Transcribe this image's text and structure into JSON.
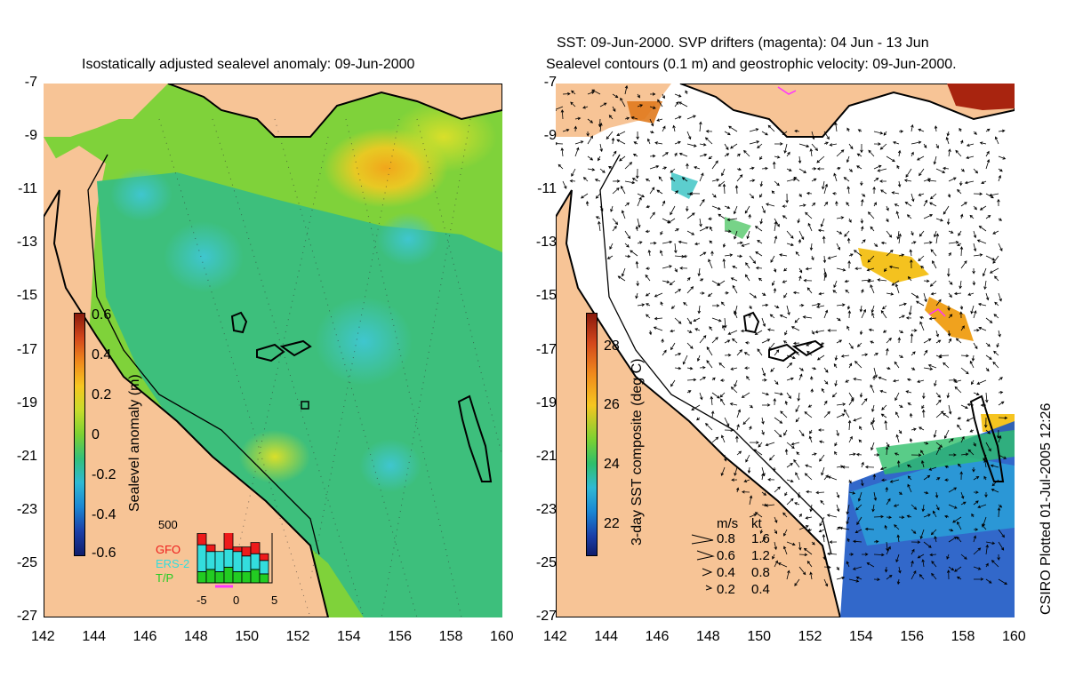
{
  "left": {
    "title": "Isostatically adjusted sealevel anomaly: 09-Jun-2000",
    "colorbar_label": "Sealevel anomaly (m)",
    "colorbar_ticks": [
      "0.6",
      "0.4",
      "0.2",
      "0",
      "-0.2",
      "-0.4",
      "-0.6"
    ],
    "histogram": {
      "ymax_label": "500",
      "legend": [
        {
          "label": "GFO",
          "color": "#ee1b1b"
        },
        {
          "label": "ERS-2",
          "color": "#33dddd"
        },
        {
          "label": "T/P",
          "color": "#22cc22"
        }
      ],
      "xticks": [
        "-5",
        "0",
        "5"
      ],
      "bars": [
        {
          "tp": 0.25,
          "ers": 0.6,
          "gfo": 0.25
        },
        {
          "tp": 0.3,
          "ers": 0.4,
          "gfo": 0.15
        },
        {
          "tp": 0.25,
          "ers": 0.45,
          "gfo": 0.0
        },
        {
          "tp": 0.35,
          "ers": 0.4,
          "gfo": 0.4
        },
        {
          "tp": 0.25,
          "ers": 0.45,
          "gfo": 0.1
        },
        {
          "tp": 0.25,
          "ers": 0.35,
          "gfo": 0.2
        },
        {
          "tp": 0.3,
          "ers": 0.35,
          "gfo": 0.25
        },
        {
          "tp": 0.2,
          "ers": 0.3,
          "gfo": 0.15
        }
      ]
    }
  },
  "right": {
    "title_line1": "SST: 09-Jun-2000. SVP drifters (magenta): 04 Jun - 13 Jun",
    "title_line2": "Sealevel contours (0.1 m) and geostrophic velocity: 09-Jun-2000.",
    "colorbar_label": "3-day SST composite (deg C)",
    "colorbar_ticks": [
      "28",
      "26",
      "24",
      "22"
    ],
    "velocity_legend": {
      "header_ms": "m/s",
      "header_kt": "kt",
      "rows": [
        {
          "ms": "0.8",
          "kt": "1.6"
        },
        {
          "ms": "0.6",
          "kt": "1.2"
        },
        {
          "ms": "0.4",
          "kt": "0.8"
        },
        {
          "ms": "0.2",
          "kt": "0.4"
        }
      ]
    }
  },
  "axes": {
    "y_ticks": [
      "-7",
      "-9",
      "-11",
      "-13",
      "-15",
      "-17",
      "-19",
      "-21",
      "-23",
      "-25",
      "-27"
    ],
    "x_ticks": [
      "142",
      "144",
      "146",
      "148",
      "150",
      "152",
      "154",
      "156",
      "158",
      "160"
    ]
  },
  "credit": "CSIRO Plotted 01-Jul-2005 12:26",
  "colors": {
    "land": "#f7c496",
    "sea_mid": "#7fd23a",
    "sea_low": "#2fbf8a"
  }
}
